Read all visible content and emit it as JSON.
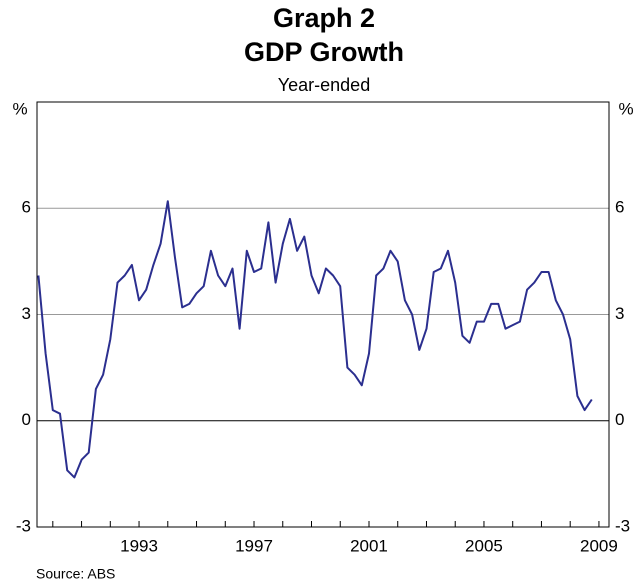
{
  "chart_data": {
    "type": "line",
    "title": "Graph 2",
    "subtitle": "GDP Growth",
    "note": "Year-ended",
    "ylabel": "%",
    "source": "Source: ABS",
    "x": [
      1989.5,
      1989.75,
      1990,
      1990.25,
      1990.5,
      1990.75,
      1991,
      1991.25,
      1991.5,
      1991.75,
      1992,
      1992.25,
      1992.5,
      1992.75,
      1993,
      1993.25,
      1993.5,
      1993.75,
      1994,
      1994.25,
      1994.5,
      1994.75,
      1995,
      1995.25,
      1995.5,
      1995.75,
      1996,
      1996.25,
      1996.5,
      1996.75,
      1997,
      1997.25,
      1997.5,
      1997.75,
      1998,
      1998.25,
      1998.5,
      1998.75,
      1999,
      1999.25,
      1999.5,
      1999.75,
      2000,
      2000.25,
      2000.5,
      2000.75,
      2001,
      2001.25,
      2001.5,
      2001.75,
      2002,
      2002.25,
      2002.5,
      2002.75,
      2003,
      2003.25,
      2003.5,
      2003.75,
      2004,
      2004.25,
      2004.5,
      2004.75,
      2005,
      2005.25,
      2005.5,
      2005.75,
      2006,
      2006.25,
      2006.5,
      2006.75,
      2007,
      2007.25,
      2007.5,
      2007.75,
      2008,
      2008.25,
      2008.5,
      2008.75
    ],
    "series": [
      {
        "name": "GDP Growth",
        "color": "#2b2f8f",
        "values": [
          4.1,
          1.9,
          0.3,
          0.2,
          -1.4,
          -1.6,
          -1.1,
          -0.9,
          0.9,
          1.3,
          2.3,
          3.9,
          4.1,
          4.4,
          3.4,
          3.7,
          4.4,
          5.0,
          6.2,
          4.6,
          3.2,
          3.3,
          3.6,
          3.8,
          4.8,
          4.1,
          3.8,
          4.3,
          2.6,
          4.8,
          4.2,
          4.3,
          5.6,
          3.9,
          5.0,
          5.7,
          4.8,
          5.2,
          4.1,
          3.6,
          4.3,
          4.1,
          3.8,
          1.5,
          1.3,
          1.0,
          1.9,
          4.1,
          4.3,
          4.8,
          4.5,
          3.4,
          3.0,
          2.0,
          2.6,
          4.2,
          4.3,
          4.8,
          3.9,
          2.4,
          2.2,
          2.8,
          2.8,
          3.3,
          3.3,
          2.6,
          2.7,
          2.8,
          3.7,
          3.9,
          4.2,
          4.2,
          3.4,
          3.0,
          2.3,
          0.7,
          0.3,
          0.6
        ]
      }
    ],
    "xlim": [
      1989.45,
      2009.35
    ],
    "xticks": [
      1993,
      1997,
      2001,
      2005,
      2009
    ],
    "xminor_ticks": [
      1990,
      1991,
      1992,
      1993,
      1994,
      1995,
      1996,
      1997,
      1998,
      1999,
      2000,
      2001,
      2002,
      2003,
      2004,
      2005,
      2006,
      2007,
      2008,
      2009
    ],
    "ylim": [
      -3,
      9
    ],
    "yticks": [
      -3,
      0,
      3,
      6
    ],
    "grid": true
  }
}
